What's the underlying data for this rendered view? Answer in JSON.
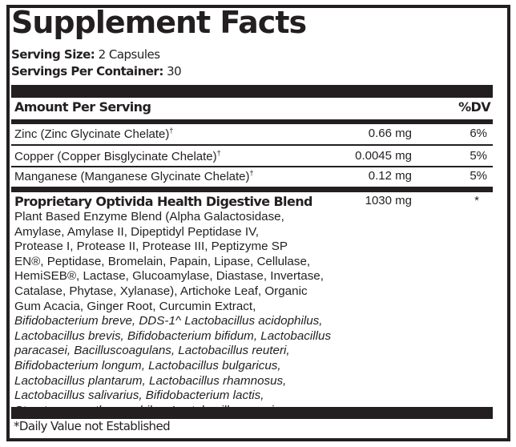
{
  "title": "Supplement Facts",
  "serving_size": {
    "label": "Serving Size:",
    "value": "2 Capsules"
  },
  "servings_per_container": {
    "label": "Servings Per Container:",
    "value": "30"
  },
  "header": {
    "amount": "Amount Per Serving",
    "dv": "%DV"
  },
  "nutrients": [
    {
      "name": "Zinc (Zinc Glycinate Chelate)",
      "mark": "†",
      "amount": "0.66 mg",
      "dv": "6%"
    },
    {
      "name": "Copper (Copper Bisglycinate Chelate)",
      "mark": "†",
      "amount": "0.0045 mg",
      "dv": "5%"
    },
    {
      "name": "Manganese (Manganese Glycinate Chelate)",
      "mark": "†",
      "amount": "0.12 mg",
      "dv": "5%"
    }
  ],
  "blend": {
    "name": "Proprietary Optivida Health Digestive Blend",
    "amount": "1030 mg",
    "dv": "*",
    "lines": [
      "Plant Based Enzyme Blend (Alpha Galactosidase,",
      "Amylase, Amylase II, Dipeptidyl Peptidase IV,",
      "Protease I, Protease II, Protease III, Peptizyme SP",
      "EN®, Peptidase, Bromelain, Papain, Lipase, Cellulase,",
      "HemiSEB®, Lactase, Glucoamylase, Diastase, Invertase,",
      "Catalase, Phytase, Xylanase), Artichoke Leaf, Organic",
      "Gum Acacia, Ginger Root, Curcumin Extract,"
    ],
    "italic_lines": [
      "Bifidobacterium breve, DDS-1^ Lactobacillus acidophilus,",
      "Lactobacillus brevis, Bifidobacterium bifidum, Lactobacillus",
      "paracasei, Bacilluscoagulans, Lactobacillus reuteri,",
      "Bifidobacterium longum, Lactobacillus bulgaricus,",
      "Lactobacillus plantarum, Lactobacillus rhamnosus,",
      "Lactobacillus salivarius, Bifidobacterium lactis,",
      "Streptococcus thermophilus, Lactobacillus casei"
    ]
  },
  "footnote": "*Daily Value not Established"
}
